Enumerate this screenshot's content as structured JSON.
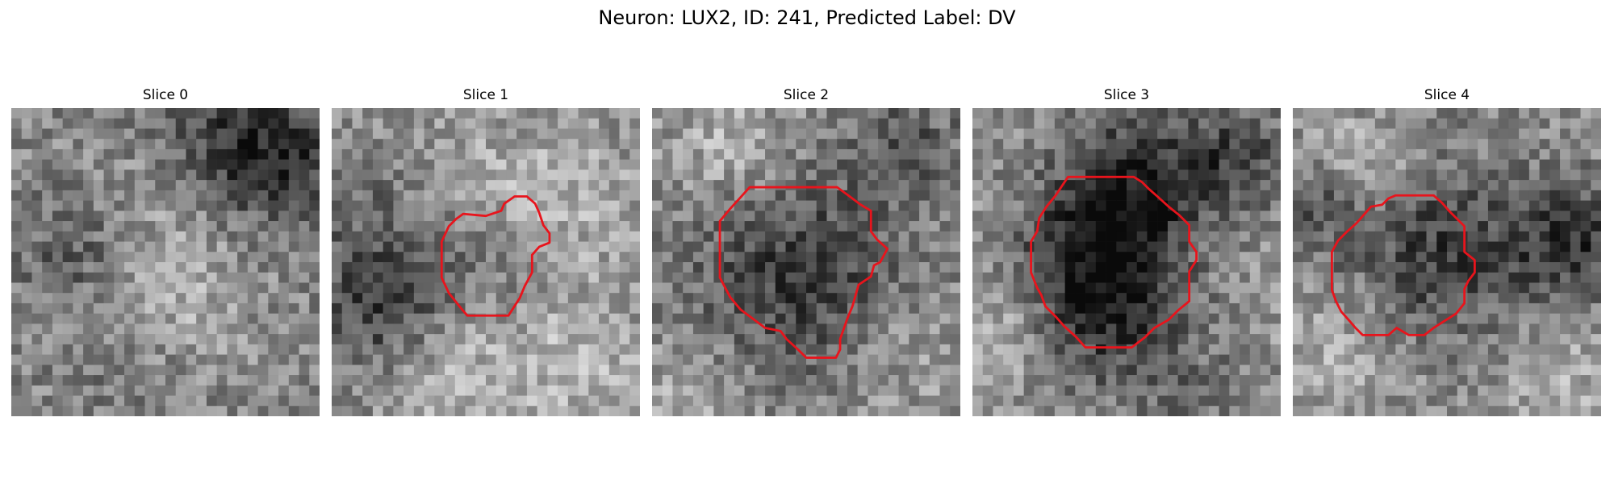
{
  "figure": {
    "title": "Neuron: LUX2, ID: 241, Predicted Label: DV"
  },
  "slices": [
    {
      "title": "Slice 0",
      "has_contour": false
    },
    {
      "title": "Slice 1",
      "has_contour": true
    },
    {
      "title": "Slice 2",
      "has_contour": true
    },
    {
      "title": "Slice 3",
      "has_contour": true
    },
    {
      "title": "Slice 4",
      "has_contour": true
    }
  ],
  "colors": {
    "contour": "#e8141c",
    "background": "#ffffff"
  }
}
